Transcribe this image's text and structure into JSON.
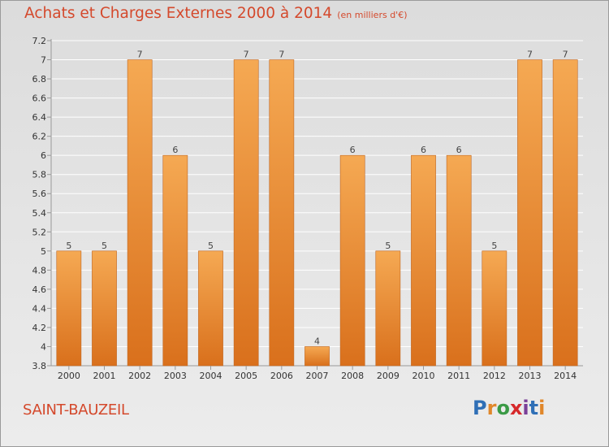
{
  "header": {
    "title": "Achats et Charges Externes 2000 à 2014",
    "subtitle": "(en milliers d'€)"
  },
  "footer": {
    "place": "SAINT-BAUZEIL",
    "brand": {
      "text": "Proxiti",
      "letter_colors": [
        "#2f6fb6",
        "#e0872a",
        "#3a9a45",
        "#d6292b",
        "#7a3f98",
        "#2f6fb6",
        "#e0872a"
      ]
    }
  },
  "colors": {
    "bar_top": "#f5a953",
    "bar_bottom": "#d9701c",
    "bar_edge": "#c0651f",
    "axis": "#999999",
    "grid": "#ffffff"
  },
  "chart_data": {
    "type": "bar",
    "title": "Achats et Charges Externes 2000 à 2014",
    "categories": [
      "2000",
      "2001",
      "2002",
      "2003",
      "2004",
      "2005",
      "2006",
      "2007",
      "2008",
      "2009",
      "2010",
      "2011",
      "2012",
      "2013",
      "2014"
    ],
    "values": [
      5,
      5,
      7,
      6,
      5,
      7,
      7,
      4,
      6,
      5,
      6,
      6,
      5,
      7,
      7
    ],
    "value_labels": [
      "5",
      "5",
      "7",
      "6",
      "5",
      "7",
      "7",
      "4",
      "6",
      "5",
      "6",
      "6",
      "5",
      "7",
      "7"
    ],
    "yticks": [
      "3.8",
      "4",
      "4.2",
      "4.4",
      "4.6",
      "4.8",
      "5",
      "5.2",
      "5.4",
      "5.6",
      "5.8",
      "6",
      "6.2",
      "6.4",
      "6.6",
      "6.8",
      "7",
      "7.2"
    ],
    "ytick_values": [
      3.8,
      4,
      4.2,
      4.4,
      4.6,
      4.8,
      5,
      5.2,
      5.4,
      5.6,
      5.8,
      6,
      6.2,
      6.4,
      6.6,
      6.8,
      7,
      7.2
    ],
    "ylim": [
      3.8,
      7.2
    ],
    "grid": true,
    "legend": "none"
  }
}
